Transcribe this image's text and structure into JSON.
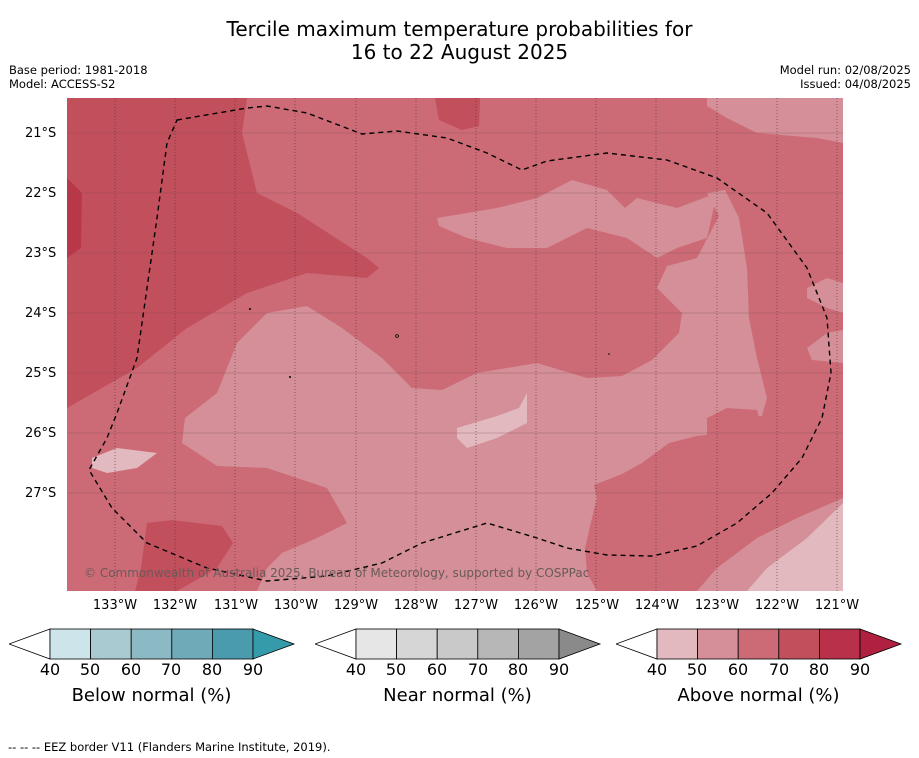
{
  "title": {
    "line1": "Tercile maximum temperature probabilities for",
    "line2": "16 to 22 August 2025"
  },
  "meta_left": {
    "base_period": "Base period: 1981-2018",
    "model": "Model: ACCESS-S2"
  },
  "meta_right": {
    "model_run": "Model run: 02/08/2025",
    "issued": "Issued: 04/08/2025"
  },
  "map": {
    "lat_labels": [
      "21°S",
      "22°S",
      "23°S",
      "24°S",
      "25°S",
      "26°S",
      "27°S"
    ],
    "lon_labels": [
      "133°W",
      "132°W",
      "131°W",
      "130°W",
      "129°W",
      "128°W",
      "127°W",
      "126°W",
      "125°W",
      "124°W",
      "123°W",
      "122°W",
      "121°W"
    ],
    "copyright": "© Commonwealth of Australia 2025, Bureau of Meteorology, supported by COSPPac",
    "colors": {
      "p40": "#e2b9bf",
      "p50": "#d48f98",
      "p60": "#cc6b76",
      "p70": "#c24f5c",
      "p80": "#b8384a"
    }
  },
  "colorbars": [
    {
      "label": "Below normal (%)",
      "ticks": [
        "40",
        "50",
        "60",
        "70",
        "80",
        "90"
      ],
      "colors": [
        "#cde5ea",
        "#a9cad0",
        "#8bbac4",
        "#6eaab7",
        "#4a9bad",
        "#359aaa"
      ]
    },
    {
      "label": "Near normal (%)",
      "ticks": [
        "40",
        "50",
        "60",
        "70",
        "80",
        "90"
      ],
      "colors": [
        "#e6e6e6",
        "#d6d6d6",
        "#c9c9c9",
        "#b7b7b7",
        "#a3a3a3",
        "#8a8a8a"
      ]
    },
    {
      "label": "Above normal (%)",
      "ticks": [
        "40",
        "50",
        "60",
        "70",
        "80",
        "90"
      ],
      "colors": [
        "#e2b9bf",
        "#d48f98",
        "#cc6b76",
        "#c24f5c",
        "#b8304a",
        "#b02040"
      ]
    }
  ],
  "footer": "--  --  -- EEZ border V11 (Flanders Marine Institute, 2019)."
}
